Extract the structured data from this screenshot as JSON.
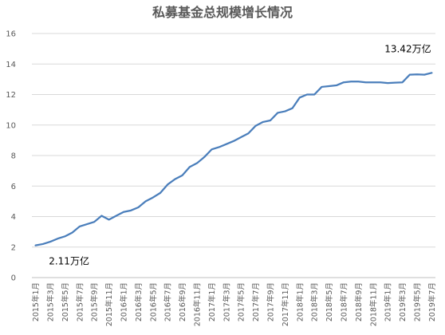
{
  "chart_data": {
    "type": "line",
    "title": "私募基金总规模增长情况",
    "xlabel": "",
    "ylabel": "",
    "ylim": [
      0,
      16
    ],
    "yticks": [
      0,
      2,
      4,
      6,
      8,
      10,
      12,
      14,
      16
    ],
    "grid": true,
    "legend": "none",
    "line_color": "#4a7ebb",
    "x": [
      "2015年1月",
      "2015年2月",
      "2015年3月",
      "2015年4月",
      "2015年5月",
      "2015年6月",
      "2015年7月",
      "2015年8月",
      "2015年9月",
      "2015年10月",
      "2015年11月",
      "2015年12月",
      "2016年1月",
      "2016年2月",
      "2016年3月",
      "2016年4月",
      "2016年5月",
      "2016年6月",
      "2016年7月",
      "2016年8月",
      "2016年9月",
      "2016年10月",
      "2016年11月",
      "2016年12月",
      "2017年1月",
      "2017年2月",
      "2017年3月",
      "2017年4月",
      "2017年5月",
      "2017年6月",
      "2017年7月",
      "2017年8月",
      "2017年9月",
      "2017年10月",
      "2017年11月",
      "2017年12月",
      "2018年1月",
      "2018年2月",
      "2018年3月",
      "2018年4月",
      "2018年5月",
      "2018年6月",
      "2018年7月",
      "2018年8月",
      "2018年9月",
      "2018年10月",
      "2018年11月",
      "2018年12月",
      "2019年1月",
      "2019年2月",
      "2019年3月",
      "2019年4月",
      "2019年5月",
      "2019年6月",
      "2019年7月"
    ],
    "x_tick_labels": [
      "2015年1月",
      "2015年3月",
      "2015年5月",
      "2015年7月",
      "2015年9月",
      "2015年11月",
      "2016年1月",
      "2016年3月",
      "2016年5月",
      "2016年7月",
      "2016年9月",
      "2016年11月",
      "2017年1月",
      "2017年3月",
      "2017年5月",
      "2017年7月",
      "2017年9月",
      "2017年11月",
      "2018年1月",
      "2018年3月",
      "2018年5月",
      "2018年7月",
      "2018年9月",
      "2018年11月",
      "2019年1月",
      "2019年3月",
      "2019年5月",
      "2019年7月"
    ],
    "series": [
      {
        "values": [
          2.11,
          2.2,
          2.35,
          2.55,
          2.7,
          2.95,
          3.35,
          3.5,
          3.65,
          4.05,
          3.8,
          4.05,
          4.3,
          4.4,
          4.6,
          5.0,
          5.25,
          5.55,
          6.1,
          6.45,
          6.7,
          7.25,
          7.5,
          7.9,
          8.4,
          8.55,
          8.75,
          8.95,
          9.2,
          9.45,
          9.95,
          10.2,
          10.3,
          10.8,
          10.9,
          11.1,
          11.8,
          12.0,
          12.0,
          12.5,
          12.55,
          12.6,
          12.8,
          12.85,
          12.85,
          12.8,
          12.8,
          12.8,
          12.75,
          12.78,
          12.8,
          13.3,
          13.32,
          13.3,
          13.42
        ]
      }
    ],
    "annotations": [
      {
        "text": "2.11万亿",
        "index": 0,
        "value": 2.11,
        "placement": "below-right"
      },
      {
        "text": "13.42万亿",
        "index": 54,
        "value": 13.42,
        "placement": "above-left"
      }
    ]
  }
}
